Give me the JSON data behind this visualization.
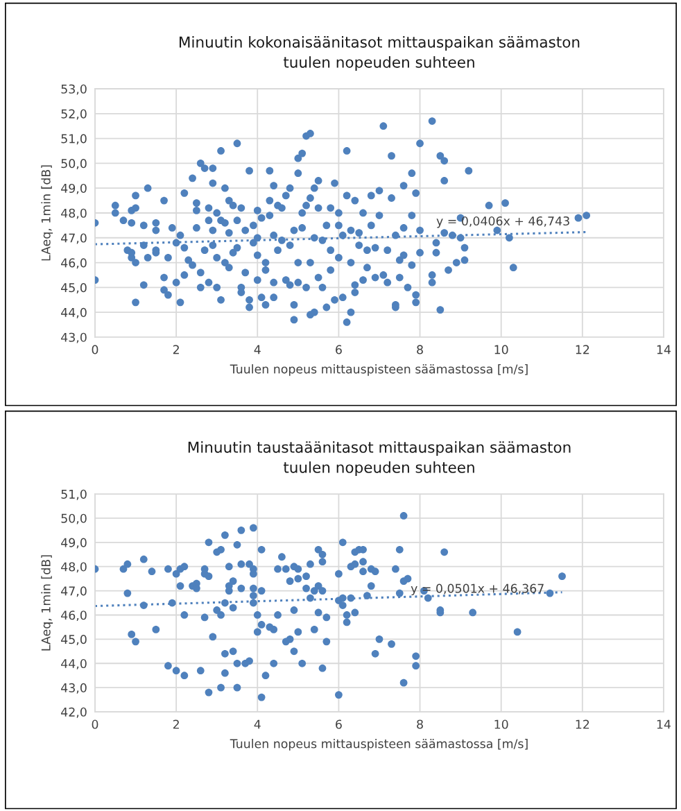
{
  "chart_data": [
    {
      "type": "scatter",
      "title": "Minuutin kokonaisäänitasot mittauspaikan säämaston\ntuulen nopeuden suhteen",
      "xlabel": "Tuulen nopeus mittauspisteen säämastossa [m/s]",
      "ylabel": "LAeq, 1min [dB]",
      "xlim": [
        0,
        14
      ],
      "xticks": [
        0,
        2,
        4,
        6,
        8,
        10,
        12,
        14
      ],
      "ylim": [
        43,
        53
      ],
      "yticks": [
        {
          "value": 43,
          "label": "43,0"
        },
        {
          "value": 44,
          "label": "44,0"
        },
        {
          "value": 45,
          "label": "45,0"
        },
        {
          "value": 46,
          "label": "46,0"
        },
        {
          "value": 47,
          "label": "47,0"
        },
        {
          "value": 48,
          "label": "48,0"
        },
        {
          "value": 49,
          "label": "49,0"
        },
        {
          "value": 50,
          "label": "50,0"
        },
        {
          "value": 51,
          "label": "51,0"
        },
        {
          "value": 52,
          "label": "52,0"
        },
        {
          "value": 53,
          "label": "53,0"
        }
      ],
      "grid": true,
      "marker": "circle",
      "annotations": [
        "y = 0,0406x + 46,743"
      ],
      "series": [
        {
          "color": "#4f81bd",
          "x": [
            0,
            0,
            0.5,
            0.5,
            0.7,
            0.8,
            0.9,
            0.9,
            0.9,
            0.9,
            1.0,
            1.0,
            1.0,
            1.0,
            1.2,
            1.2,
            1.2,
            1.3,
            1.3,
            1.5,
            1.5,
            1.5,
            1.5,
            1.7,
            1.7,
            1.7,
            1.8,
            1.8,
            1.9,
            2.0,
            2.0,
            2.1,
            2.1,
            2.2,
            2.2,
            2.2,
            2.3,
            2.4,
            2.4,
            2.5,
            2.5,
            2.5,
            2.6,
            2.6,
            2.6,
            2.7,
            2.7,
            2.8,
            2.8,
            2.8,
            2.9,
            2.9,
            2.9,
            2.9,
            3.0,
            3.0,
            3.0,
            3.1,
            3.1,
            3.1,
            3.2,
            3.2,
            3.2,
            3.3,
            3.3,
            3.3,
            3.4,
            3.4,
            3.5,
            3.5,
            3.5,
            3.6,
            3.6,
            3.6,
            3.7,
            3.7,
            3.8,
            3.8,
            3.8,
            3.9,
            3.9,
            4.0,
            4.0,
            4.0,
            4.0,
            4.1,
            4.1,
            4.2,
            4.2,
            4.2,
            4.3,
            4.3,
            4.3,
            4.4,
            4.4,
            4.4,
            4.4,
            4.5,
            4.5,
            4.6,
            4.6,
            4.7,
            4.7,
            4.8,
            4.8,
            4.8,
            4.9,
            4.9,
            4.9,
            5.0,
            5.0,
            5.0,
            5.0,
            5.1,
            5.1,
            5.1,
            5.2,
            5.2,
            5.2,
            5.3,
            5.3,
            5.3,
            5.3,
            5.4,
            5.4,
            5.4,
            5.5,
            5.5,
            5.5,
            5.6,
            5.6,
            5.7,
            5.7,
            5.8,
            5.8,
            5.8,
            5.9,
            5.9,
            6.0,
            6.0,
            6.0,
            6.1,
            6.1,
            6.2,
            6.2,
            6.2,
            6.3,
            6.3,
            6.3,
            6.4,
            6.4,
            6.4,
            6.5,
            6.5,
            6.6,
            6.6,
            6.7,
            6.7,
            6.8,
            6.8,
            6.9,
            6.9,
            7.0,
            7.0,
            7.1,
            7.1,
            7.2,
            7.2,
            7.3,
            7.3,
            7.4,
            7.4,
            7.4,
            7.5,
            7.5,
            7.6,
            7.6,
            7.6,
            7.7,
            7.8,
            7.8,
            7.8,
            7.9,
            7.9,
            7.9,
            8.0,
            8.0,
            8.0,
            8.3,
            8.3,
            8.3,
            8.4,
            8.4,
            8.5,
            8.5,
            8.6,
            8.6,
            8.6,
            8.7,
            8.8,
            8.9,
            9.0,
            9.0,
            9.1,
            9.1,
            9.2,
            9.7,
            9.9,
            10.1,
            10.2,
            10.3,
            11.9,
            12.1
          ],
          "values": [
            47.6,
            45.3,
            48.3,
            48.0,
            47.7,
            46.5,
            46.2,
            48.1,
            46.4,
            47.6,
            46.0,
            48.2,
            48.7,
            44.4,
            47.5,
            46.7,
            45.1,
            49.0,
            46.2,
            47.6,
            47.3,
            46.5,
            46.4,
            48.5,
            45.4,
            44.9,
            46.2,
            44.7,
            47.4,
            45.2,
            46.8,
            47.1,
            44.4,
            48.8,
            46.6,
            45.5,
            46.1,
            49.4,
            45.9,
            48.1,
            48.4,
            47.4,
            50.0,
            45.6,
            45.0,
            49.8,
            46.5,
            48.2,
            47.7,
            45.2,
            49.8,
            49.2,
            47.3,
            46.7,
            48.0,
            46.2,
            45.0,
            50.5,
            47.7,
            44.5,
            47.6,
            46.0,
            49.0,
            48.5,
            47.2,
            45.8,
            48.3,
            46.4,
            50.8,
            47.7,
            46.6,
            48.2,
            45.0,
            44.8,
            47.3,
            45.6,
            49.7,
            44.2,
            44.5,
            47.5,
            46.8,
            48.1,
            47.0,
            46.3,
            45.3,
            44.6,
            47.8,
            46.0,
            44.3,
            45.7,
            49.7,
            47.9,
            48.5,
            49.1,
            47.1,
            45.2,
            44.6,
            48.3,
            46.5,
            48.2,
            46.9,
            48.7,
            45.3,
            49.0,
            46.7,
            45.1,
            44.3,
            43.7,
            47.3,
            50.2,
            49.6,
            46.0,
            45.2,
            50.4,
            48.0,
            47.4,
            51.1,
            48.3,
            45.0,
            51.2,
            48.6,
            46.0,
            43.9,
            49.0,
            47.0,
            44.0,
            49.3,
            48.2,
            45.4,
            46.9,
            45.0,
            47.5,
            44.2,
            48.2,
            46.5,
            45.7,
            49.2,
            44.5,
            48.0,
            47.5,
            46.2,
            47.1,
            44.6,
            50.5,
            48.7,
            43.6,
            47.3,
            46.0,
            44.0,
            48.5,
            45.1,
            44.8,
            47.2,
            46.7,
            48.0,
            45.3,
            46.5,
            45.8,
            48.7,
            47.5,
            46.6,
            45.4,
            48.9,
            47.9,
            51.5,
            45.5,
            46.5,
            45.2,
            50.3,
            48.6,
            47.1,
            44.3,
            44.2,
            45.4,
            46.1,
            49.1,
            47.4,
            46.3,
            45.0,
            49.6,
            47.9,
            45.9,
            48.8,
            44.7,
            44.4,
            50.8,
            47.3,
            46.4,
            51.7,
            45.5,
            45.2,
            46.8,
            46.4,
            50.3,
            44.1,
            50.1,
            49.3,
            47.2,
            45.7,
            47.1,
            46.0,
            47.8,
            47.0,
            46.1,
            46.6,
            49.7,
            48.3,
            47.3,
            48.4,
            47.0,
            45.8,
            47.8,
            47.9
          ]
        },
        {
          "type": "line",
          "color": "#4f81bd",
          "line_style": "dotted",
          "marker": "none",
          "x": [
            0,
            12.1
          ],
          "values": [
            46.74,
            47.23
          ]
        }
      ]
    },
    {
      "type": "scatter",
      "title": "Minuutin taustaäänitasot mittauspaikan säämaston\ntuulen nopeuden suhteen",
      "xlabel": "Tuulen nopeus mittauspisteen säämastossa [m/s]",
      "ylabel": "LAeq, 1min [dB]",
      "xlim": [
        0,
        14
      ],
      "xticks": [
        0,
        2,
        4,
        6,
        8,
        10,
        12,
        14
      ],
      "ylim": [
        42,
        51
      ],
      "yticks": [
        {
          "value": 42,
          "label": "42,0"
        },
        {
          "value": 43,
          "label": "43,0"
        },
        {
          "value": 44,
          "label": "44,0"
        },
        {
          "value": 45,
          "label": "45,0"
        },
        {
          "value": 46,
          "label": "46,0"
        },
        {
          "value": 47,
          "label": "47,0"
        },
        {
          "value": 48,
          "label": "48,0"
        },
        {
          "value": 49,
          "label": "49,0"
        },
        {
          "value": 50,
          "label": "50,0"
        },
        {
          "value": 51,
          "label": "51,0"
        }
      ],
      "grid": true,
      "marker": "circle",
      "annotations": [
        "y = 0,0501x + 46,367"
      ],
      "series": [
        {
          "color": "#4f81bd",
          "x": [
            0,
            0.7,
            0.8,
            0.8,
            0.9,
            1.0,
            1.2,
            1.2,
            1.4,
            1.5,
            1.8,
            1.8,
            1.9,
            2.0,
            2.0,
            2.1,
            2.1,
            2.2,
            2.2,
            2.2,
            2.4,
            2.5,
            2.5,
            2.6,
            2.7,
            2.7,
            2.7,
            2.8,
            2.8,
            2.8,
            2.9,
            3.0,
            3.0,
            3.1,
            3.1,
            3.1,
            3.2,
            3.2,
            3.2,
            3.2,
            3.3,
            3.3,
            3.3,
            3.4,
            3.4,
            3.4,
            3.5,
            3.5,
            3.5,
            3.6,
            3.6,
            3.6,
            3.7,
            3.8,
            3.8,
            3.9,
            3.9,
            3.9,
            3.9,
            3.9,
            3.9,
            4.0,
            4.0,
            4.1,
            4.1,
            4.1,
            4.1,
            4.2,
            4.3,
            4.4,
            4.4,
            4.5,
            4.5,
            4.6,
            4.7,
            4.7,
            4.8,
            4.8,
            4.9,
            4.9,
            4.9,
            5.0,
            5.0,
            5.0,
            5.1,
            5.2,
            5.2,
            5.3,
            5.3,
            5.4,
            5.4,
            5.5,
            5.5,
            5.5,
            5.6,
            5.6,
            5.6,
            5.6,
            5.7,
            5.7,
            6.0,
            6.0,
            6.0,
            6.1,
            6.1,
            6.1,
            6.2,
            6.2,
            6.3,
            6.3,
            6.4,
            6.4,
            6.4,
            6.5,
            6.6,
            6.6,
            6.6,
            6.7,
            6.8,
            6.8,
            6.9,
            6.9,
            7.0,
            7.3,
            7.4,
            7.5,
            7.5,
            7.6,
            7.6,
            7.6,
            7.7,
            7.9,
            7.9,
            8.1,
            8.2,
            8.5,
            8.5,
            8.6,
            9.3,
            10.4,
            11.2,
            11.5
          ],
          "values": [
            47.9,
            47.9,
            48.1,
            46.9,
            45.2,
            44.9,
            48.3,
            46.4,
            47.8,
            45.4,
            47.9,
            43.9,
            46.5,
            47.7,
            43.7,
            47.2,
            47.9,
            48.0,
            46.0,
            43.5,
            47.2,
            47.3,
            47.1,
            43.7,
            47.9,
            47.7,
            45.9,
            49.0,
            47.6,
            42.8,
            45.1,
            48.6,
            46.2,
            48.7,
            46.0,
            43.0,
            49.3,
            46.5,
            44.4,
            43.6,
            48.0,
            47.2,
            47.0,
            47.4,
            46.3,
            44.5,
            48.9,
            44.0,
            43.0,
            49.5,
            48.1,
            47.1,
            44.0,
            48.1,
            44.1,
            49.6,
            47.9,
            47.7,
            47.1,
            46.8,
            46.5,
            45.3,
            46.0,
            48.7,
            47.0,
            45.6,
            42.6,
            43.5,
            45.5,
            45.4,
            44.0,
            47.9,
            46.0,
            48.4,
            47.9,
            44.9,
            47.4,
            45.0,
            48.0,
            46.2,
            44.5,
            47.9,
            47.5,
            45.3,
            44.0,
            47.6,
            47.1,
            48.1,
            46.7,
            47.0,
            45.4,
            48.7,
            47.2,
            46.1,
            48.5,
            48.2,
            47.0,
            43.8,
            45.9,
            44.9,
            47.7,
            46.6,
            42.7,
            49.0,
            46.7,
            46.4,
            46.0,
            45.7,
            48.0,
            46.7,
            48.6,
            48.1,
            46.1,
            48.7,
            48.7,
            48.2,
            47.8,
            46.8,
            47.9,
            47.2,
            47.8,
            44.4,
            45.0,
            44.8,
            47.9,
            48.7,
            46.9,
            50.1,
            47.4,
            43.2,
            47.5,
            44.3,
            43.9,
            47.0,
            46.7,
            46.2,
            46.1,
            48.6,
            46.1,
            45.3,
            46.9,
            47.6
          ]
        },
        {
          "type": "line",
          "color": "#4f81bd",
          "line_style": "dotted",
          "marker": "none",
          "x": [
            0,
            11.5
          ],
          "values": [
            46.37,
            46.94
          ]
        }
      ]
    }
  ]
}
